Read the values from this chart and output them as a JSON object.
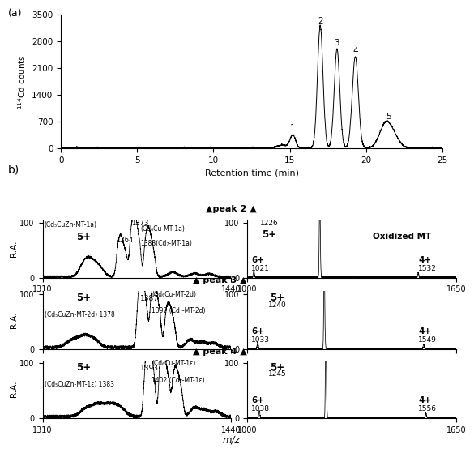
{
  "fig_width": 5.67,
  "fig_height": 5.5,
  "panel_a": {
    "xlabel": "Retention time (min)",
    "ylabel": "114Cd counts",
    "xlim": [
      0,
      25
    ],
    "ylim": [
      0,
      3500
    ],
    "yticks": [
      0,
      700,
      1400,
      2100,
      2800,
      3500
    ],
    "xticks": [
      0,
      5,
      10,
      15,
      20,
      25
    ]
  },
  "left_xlim": [
    1310,
    1440
  ],
  "right_xlim": [
    1000,
    1650
  ],
  "left_xticks": [
    1310,
    1440
  ],
  "right_xticks": [
    1000,
    1650
  ],
  "mz_label": "m/z",
  "panel_a_label": "(a)",
  "panel_b_label": "b)"
}
